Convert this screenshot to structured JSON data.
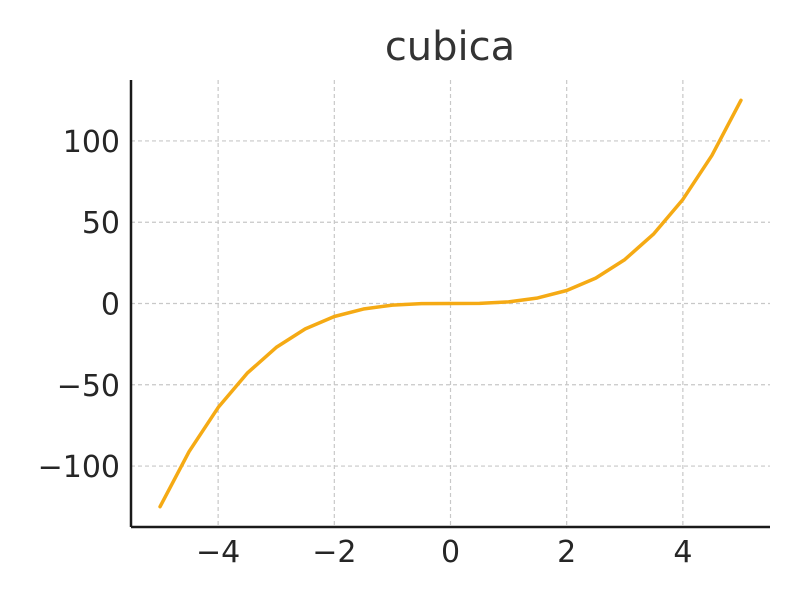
{
  "chart_data": {
    "type": "line",
    "title": "cubica",
    "xlabel": "",
    "ylabel": "",
    "xlim": [
      -5.5,
      5.5
    ],
    "ylim": [
      -137.5,
      137.5
    ],
    "xticks": [
      -4,
      -2,
      0,
      2,
      4
    ],
    "xtick_labels": [
      "−4",
      "−2",
      "0",
      "2",
      "4"
    ],
    "yticks": [
      -100,
      -50,
      0,
      50,
      100
    ],
    "ytick_labels": [
      "−100",
      "−50",
      "0",
      "50",
      "100"
    ],
    "grid": true,
    "legend": "none",
    "series": [
      {
        "color": "#f5aa14",
        "x": [
          -5,
          -4.5,
          -4,
          -3.5,
          -3,
          -2.5,
          -2,
          -1.5,
          -1,
          -0.5,
          0,
          0.5,
          1,
          1.5,
          2,
          2.5,
          3,
          3.5,
          4,
          4.5,
          5
        ],
        "y": [
          -125,
          -91.1,
          -64,
          -42.9,
          -27,
          -15.6,
          -8,
          -3.4,
          -1,
          -0.1,
          0,
          0.1,
          1,
          3.4,
          8,
          15.6,
          27,
          42.9,
          64,
          91.1,
          125
        ]
      }
    ]
  }
}
